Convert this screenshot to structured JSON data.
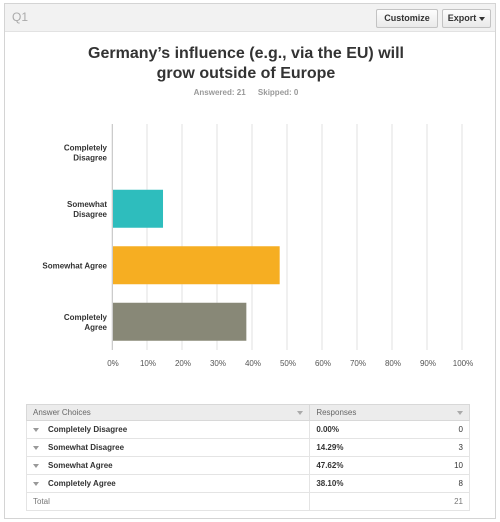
{
  "header": {
    "question_number": "Q1",
    "customize_label": "Customize",
    "export_label": "Export"
  },
  "title_line1": "Germany’s influence (e.g., via the EU) will",
  "title_line2": "grow outside of Europe",
  "stats": {
    "answered": "Answered: 21",
    "skipped": "Skipped: 0"
  },
  "colors": {
    "Completely Disagree": "#cccccc",
    "Somewhat Disagree": "#2ebdbd",
    "Somewhat Agree": "#f6ae22",
    "Completely Agree": "#888877"
  },
  "chart_data": {
    "type": "bar",
    "orientation": "horizontal",
    "categories": [
      "Completely Disagree",
      "Somewhat Disagree",
      "Somewhat Agree",
      "Completely Agree"
    ],
    "category_labels": [
      [
        "Completely",
        "Disagree"
      ],
      [
        "Somewhat",
        "Disagree"
      ],
      [
        "Somewhat Agree"
      ],
      [
        "Completely",
        "Agree"
      ]
    ],
    "values": [
      0.0,
      14.29,
      47.62,
      38.1
    ],
    "xlim": [
      0,
      100
    ],
    "xticks": [
      "0%",
      "10%",
      "20%",
      "30%",
      "40%",
      "50%",
      "60%",
      "70%",
      "80%",
      "90%",
      "100%"
    ],
    "grid": true
  },
  "table": {
    "headers": [
      "Answer Choices",
      "Responses"
    ],
    "rows": [
      {
        "choice": "Completely Disagree",
        "percent": "0.00%",
        "count": "0"
      },
      {
        "choice": "Somewhat Disagree",
        "percent": "14.29%",
        "count": "3"
      },
      {
        "choice": "Somewhat Agree",
        "percent": "47.62%",
        "count": "10"
      },
      {
        "choice": "Completely Agree",
        "percent": "38.10%",
        "count": "8"
      }
    ],
    "total_label": "Total",
    "total_value": "21"
  }
}
